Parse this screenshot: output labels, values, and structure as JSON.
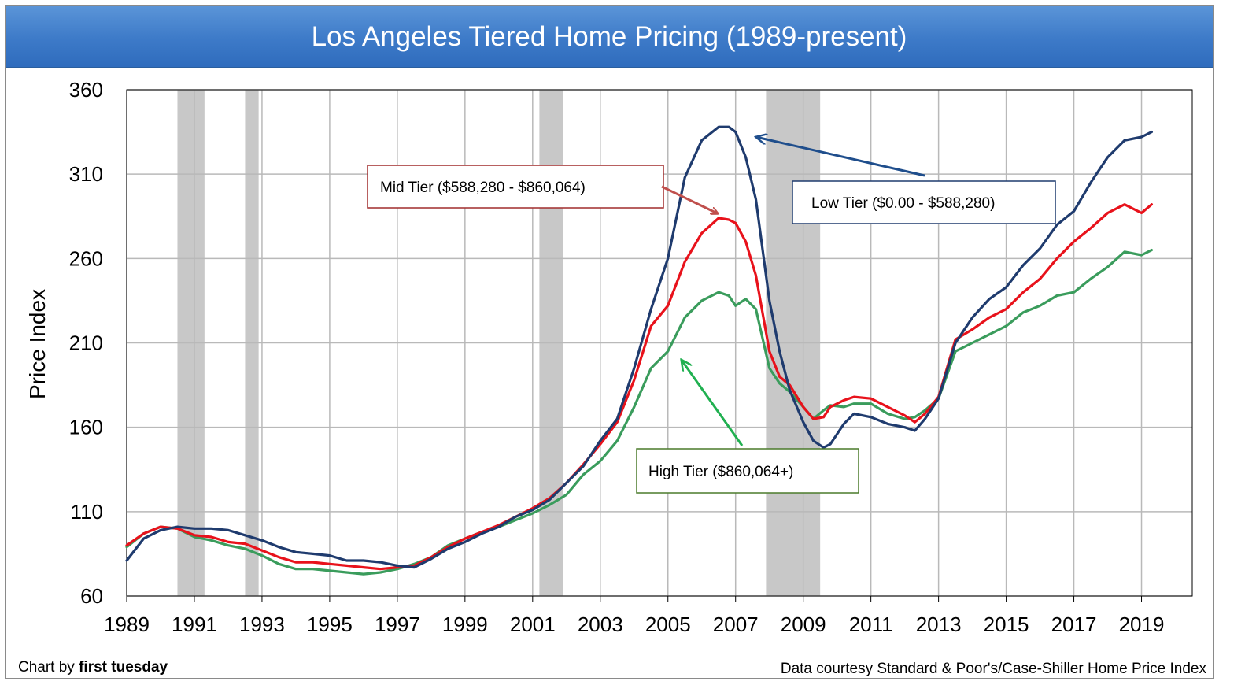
{
  "title": "Los Angeles Tiered Home Pricing (1989-present)",
  "footer": {
    "credit_prefix": "Chart by ",
    "credit_brand": "first tuesday",
    "source": "Data courtesy Standard & Poor's/Case-Shiller Home Price Index"
  },
  "colors": {
    "low": "#1f3b6e",
    "mid": "#e8121b",
    "high": "#3a9c5c",
    "recession": "#c8c8c8",
    "title_bar": "#3d7ac8"
  },
  "chart_data": {
    "type": "line",
    "ylabel": "Price Index",
    "xlabel": "",
    "ylim": [
      60,
      360
    ],
    "xlim": [
      1989,
      2020.5
    ],
    "yticks": [
      60,
      110,
      160,
      210,
      260,
      310,
      360
    ],
    "xticks": [
      1989,
      1991,
      1993,
      1995,
      1997,
      1999,
      2001,
      2003,
      2005,
      2007,
      2009,
      2011,
      2013,
      2015,
      2017,
      2019
    ],
    "grid": true,
    "recessions": [
      [
        1990.5,
        1991.3
      ],
      [
        1992.5,
        1992.9
      ],
      [
        2001.2,
        2001.9
      ],
      [
        2007.9,
        2009.5
      ]
    ],
    "annotations": [
      {
        "text": "Mid Tier ($588,280 - $860,064)",
        "series": "mid",
        "point": [
          2006.5,
          284
        ]
      },
      {
        "text": "Low Tier ($0.00 - $588,280)",
        "series": "low",
        "point": [
          2007.5,
          333
        ]
      },
      {
        "text": "High Tier ($860,064+)",
        "series": "high",
        "point": [
          2005.3,
          201
        ]
      }
    ],
    "series": [
      {
        "key": "low",
        "x": [
          1989.0,
          1989.5,
          1990.0,
          1990.5,
          1991.0,
          1991.5,
          1992.0,
          1992.5,
          1993.0,
          1993.5,
          1994.0,
          1994.5,
          1995.0,
          1995.5,
          1996.0,
          1996.5,
          1997.0,
          1997.5,
          1998.0,
          1998.5,
          1999.0,
          1999.5,
          2000.0,
          2000.5,
          2001.0,
          2001.5,
          2002.0,
          2002.5,
          2003.0,
          2003.5,
          2004.0,
          2004.5,
          2005.0,
          2005.5,
          2006.0,
          2006.5,
          2006.8,
          2007.0,
          2007.3,
          2007.6,
          2008.0,
          2008.3,
          2008.6,
          2009.0,
          2009.3,
          2009.6,
          2009.8,
          2010.2,
          2010.5,
          2011.0,
          2011.5,
          2012.0,
          2012.3,
          2012.6,
          2013.0,
          2013.5,
          2014.0,
          2014.5,
          2015.0,
          2015.5,
          2016.0,
          2016.5,
          2017.0,
          2017.5,
          2018.0,
          2018.5,
          2019.0,
          2019.3
        ],
        "values": [
          81,
          94,
          99,
          101,
          100,
          100,
          99,
          96,
          93,
          89,
          86,
          85,
          84,
          81,
          81,
          80,
          78,
          77,
          82,
          88,
          92,
          97,
          101,
          107,
          111,
          117,
          127,
          137,
          152,
          165,
          195,
          230,
          260,
          308,
          330,
          338,
          338,
          335,
          320,
          295,
          235,
          205,
          182,
          163,
          152,
          148,
          150,
          162,
          168,
          166,
          162,
          160,
          158,
          165,
          177,
          210,
          225,
          236,
          243,
          256,
          266,
          280,
          288,
          305,
          320,
          330,
          332,
          335
        ]
      },
      {
        "key": "mid",
        "x": [
          1989.0,
          1989.5,
          1990.0,
          1990.5,
          1991.0,
          1991.5,
          1992.0,
          1992.5,
          1993.0,
          1993.5,
          1994.0,
          1994.5,
          1995.0,
          1995.5,
          1996.0,
          1996.5,
          1997.0,
          1997.5,
          1998.0,
          1998.5,
          1999.0,
          1999.5,
          2000.0,
          2000.5,
          2001.0,
          2001.5,
          2002.0,
          2002.5,
          2003.0,
          2003.5,
          2004.0,
          2004.5,
          2005.0,
          2005.5,
          2006.0,
          2006.5,
          2006.8,
          2007.0,
          2007.3,
          2007.6,
          2008.0,
          2008.3,
          2008.6,
          2009.0,
          2009.3,
          2009.6,
          2009.8,
          2010.2,
          2010.5,
          2011.0,
          2011.5,
          2012.0,
          2012.3,
          2012.6,
          2013.0,
          2013.5,
          2014.0,
          2014.5,
          2015.0,
          2015.5,
          2016.0,
          2016.5,
          2017.0,
          2017.5,
          2018.0,
          2018.5,
          2019.0,
          2019.3
        ],
        "values": [
          90,
          97,
          101,
          100,
          96,
          95,
          92,
          91,
          87,
          83,
          80,
          80,
          79,
          78,
          77,
          76,
          77,
          78,
          83,
          89,
          94,
          98,
          102,
          107,
          112,
          118,
          127,
          138,
          150,
          163,
          188,
          220,
          232,
          258,
          275,
          284,
          283,
          281,
          270,
          250,
          205,
          190,
          185,
          172,
          165,
          166,
          172,
          176,
          178,
          177,
          172,
          167,
          163,
          168,
          178,
          212,
          218,
          225,
          230,
          240,
          248,
          260,
          270,
          278,
          287,
          292,
          287,
          292
        ]
      },
      {
        "key": "high",
        "x": [
          1989.0,
          1989.5,
          1990.0,
          1990.5,
          1991.0,
          1991.5,
          1992.0,
          1992.5,
          1993.0,
          1993.5,
          1994.0,
          1994.5,
          1995.0,
          1995.5,
          1996.0,
          1996.5,
          1997.0,
          1997.5,
          1998.0,
          1998.5,
          1999.0,
          1999.5,
          2000.0,
          2000.5,
          2001.0,
          2001.5,
          2002.0,
          2002.5,
          2003.0,
          2003.5,
          2004.0,
          2004.5,
          2005.0,
          2005.5,
          2006.0,
          2006.5,
          2006.8,
          2007.0,
          2007.3,
          2007.6,
          2008.0,
          2008.3,
          2008.6,
          2009.0,
          2009.3,
          2009.6,
          2009.8,
          2010.2,
          2010.5,
          2011.0,
          2011.5,
          2012.0,
          2012.3,
          2012.6,
          2013.0,
          2013.5,
          2014.0,
          2014.5,
          2015.0,
          2015.5,
          2016.0,
          2016.5,
          2017.0,
          2017.5,
          2018.0,
          2018.5,
          2019.0,
          2019.3
        ],
        "values": [
          89,
          97,
          101,
          100,
          95,
          93,
          90,
          88,
          84,
          79,
          76,
          76,
          75,
          74,
          73,
          74,
          76,
          79,
          83,
          90,
          94,
          98,
          101,
          105,
          109,
          114,
          120,
          132,
          140,
          152,
          172,
          195,
          205,
          225,
          235,
          240,
          238,
          232,
          236,
          230,
          195,
          186,
          181,
          172,
          165,
          170,
          173,
          172,
          174,
          174,
          168,
          165,
          166,
          170,
          177,
          205,
          210,
          215,
          220,
          228,
          232,
          238,
          240,
          248,
          255,
          264,
          262,
          265
        ]
      }
    ]
  }
}
